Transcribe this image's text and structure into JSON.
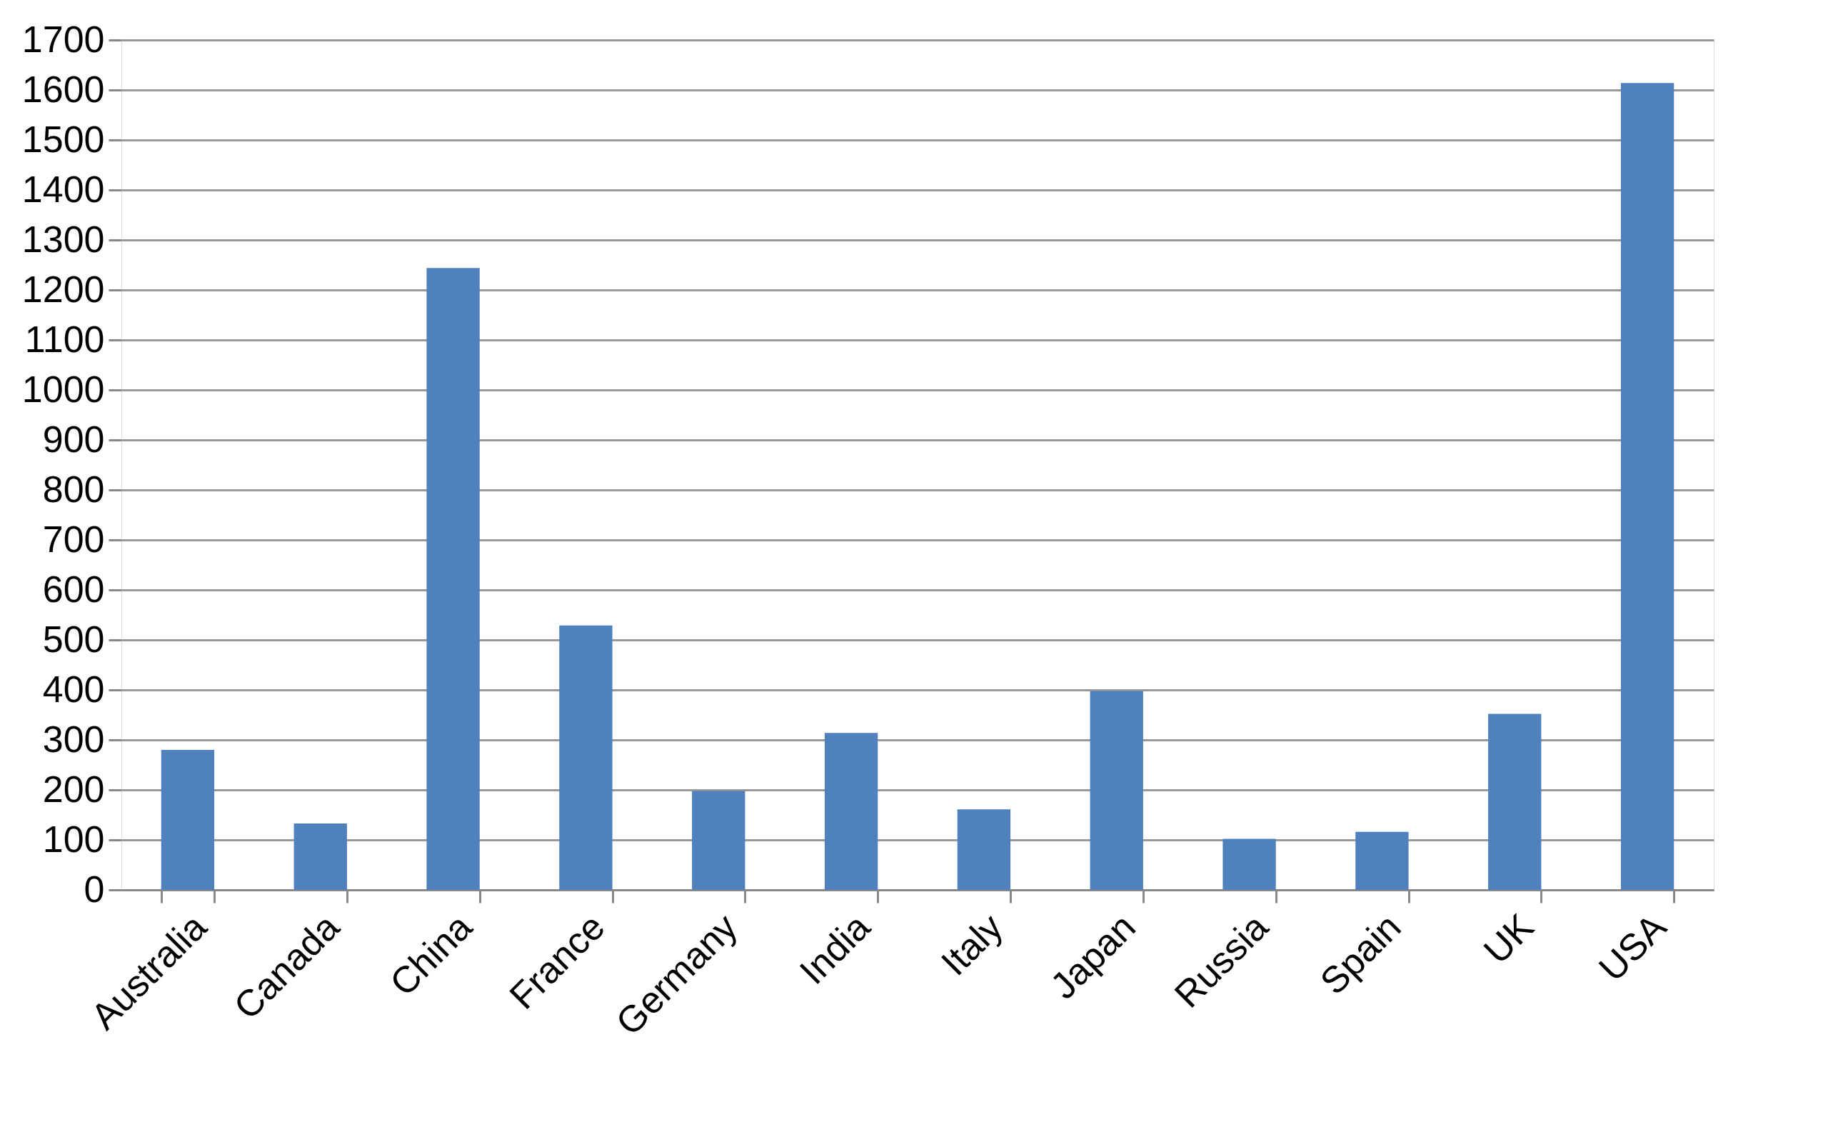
{
  "chart_data": {
    "type": "bar",
    "categories": [
      "Australia",
      "Canada",
      "China",
      "France",
      "Germany",
      "India",
      "Italy",
      "Japan",
      "Russia",
      "Spain",
      "UK",
      "USA"
    ],
    "values": [
      280,
      133,
      1244,
      529,
      198,
      314,
      161,
      398,
      102,
      116,
      352,
      1614
    ],
    "color": "#4f81bd",
    "ylim": [
      0,
      1700
    ],
    "yticks": [
      0,
      100,
      200,
      300,
      400,
      500,
      600,
      700,
      800,
      900,
      1000,
      1100,
      1200,
      1300,
      1400,
      1500,
      1600,
      1700
    ],
    "grid": "y"
  }
}
